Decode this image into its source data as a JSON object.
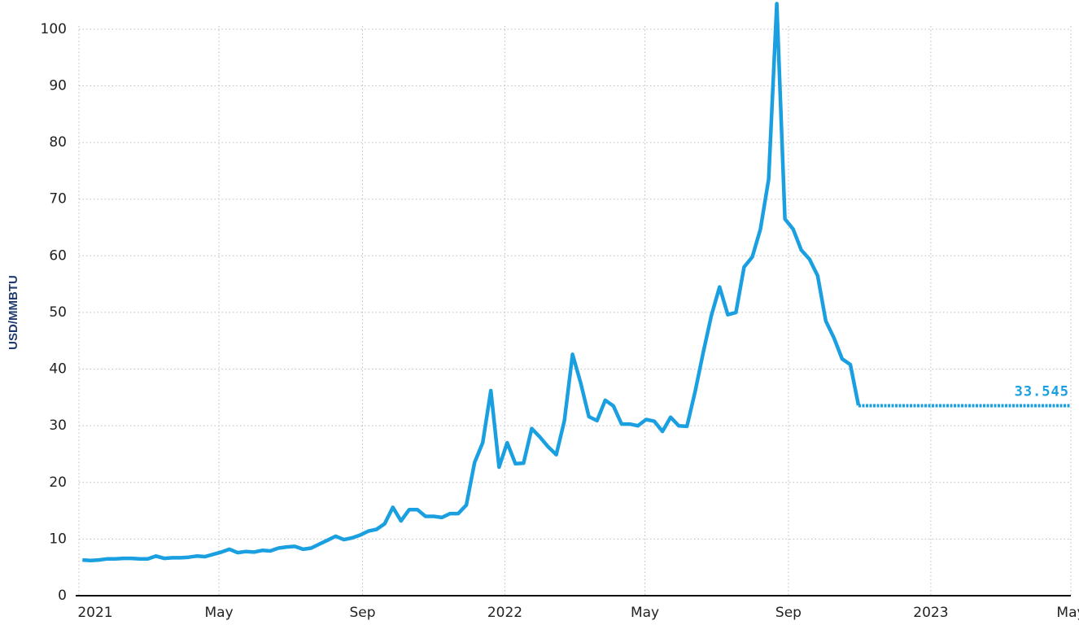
{
  "chart_data": {
    "type": "line",
    "y_label": "USD/MMBTU",
    "xlim": [
      "2021-01-01",
      "2023-05-01"
    ],
    "xticks": [
      {
        "value": "2021-01-01",
        "label": "2021"
      },
      {
        "value": "2021-05-01",
        "label": "May"
      },
      {
        "value": "2021-09-01",
        "label": "Sep"
      },
      {
        "value": "2022-01-01",
        "label": "2022"
      },
      {
        "value": "2022-05-01",
        "label": "May"
      },
      {
        "value": "2022-09-01",
        "label": "Sep"
      },
      {
        "value": "2023-01-01",
        "label": "2023"
      },
      {
        "value": "2023-05-01",
        "label": "May"
      }
    ],
    "ylim": [
      0,
      104
    ],
    "yticks": [
      0,
      10,
      20,
      30,
      40,
      50,
      60,
      70,
      80,
      90,
      100
    ],
    "grid": true,
    "series": [
      {
        "color": "#1a9fe0",
        "style": "solid",
        "x": [
          "2021-01-04",
          "2021-01-11",
          "2021-01-18",
          "2021-01-25",
          "2021-02-01",
          "2021-02-08",
          "2021-02-15",
          "2021-02-22",
          "2021-03-01",
          "2021-03-08",
          "2021-03-15",
          "2021-03-22",
          "2021-03-29",
          "2021-04-05",
          "2021-04-12",
          "2021-04-19",
          "2021-04-26",
          "2021-05-03",
          "2021-05-10",
          "2021-05-17",
          "2021-05-24",
          "2021-05-31",
          "2021-06-07",
          "2021-06-14",
          "2021-06-21",
          "2021-06-28",
          "2021-07-05",
          "2021-07-12",
          "2021-07-19",
          "2021-07-26",
          "2021-08-02",
          "2021-08-09",
          "2021-08-16",
          "2021-08-23",
          "2021-08-30",
          "2021-09-06",
          "2021-09-13",
          "2021-09-20",
          "2021-09-27",
          "2021-10-04",
          "2021-10-11",
          "2021-10-18",
          "2021-10-25",
          "2021-11-01",
          "2021-11-08",
          "2021-11-15",
          "2021-11-22",
          "2021-11-29",
          "2021-12-06",
          "2021-12-13",
          "2021-12-20",
          "2021-12-27",
          "2022-01-03",
          "2022-01-10",
          "2022-01-17",
          "2022-01-24",
          "2022-01-31",
          "2022-02-07",
          "2022-02-14",
          "2022-02-21",
          "2022-02-28",
          "2022-03-07",
          "2022-03-14",
          "2022-03-21",
          "2022-03-28",
          "2022-04-04",
          "2022-04-11",
          "2022-04-18",
          "2022-04-25",
          "2022-05-02",
          "2022-05-09",
          "2022-05-16",
          "2022-05-23",
          "2022-05-30",
          "2022-06-06",
          "2022-06-13",
          "2022-06-20",
          "2022-06-27",
          "2022-07-04",
          "2022-07-11",
          "2022-07-18",
          "2022-07-25",
          "2022-08-01",
          "2022-08-08",
          "2022-08-15",
          "2022-08-22",
          "2022-08-29",
          "2022-09-05",
          "2022-09-12",
          "2022-09-19",
          "2022-09-26",
          "2022-10-03",
          "2022-10-10",
          "2022-10-17",
          "2022-10-24",
          "2022-10-31"
        ],
        "values": [
          6.3,
          6.2,
          6.3,
          6.5,
          6.5,
          6.6,
          6.6,
          6.5,
          6.5,
          7.0,
          6.6,
          6.7,
          6.7,
          6.8,
          7.0,
          6.9,
          7.3,
          7.7,
          8.2,
          7.6,
          7.8,
          7.7,
          8.0,
          7.9,
          8.4,
          8.6,
          8.7,
          8.2,
          8.4,
          9.1,
          9.8,
          10.5,
          9.9,
          10.2,
          10.7,
          11.4,
          11.7,
          12.7,
          15.6,
          13.2,
          15.2,
          15.2,
          14.0,
          14.0,
          13.8,
          14.5,
          14.5,
          16.0,
          23.5,
          27.0,
          36.2,
          22.7,
          27.0,
          23.3,
          23.4,
          29.5,
          28.0,
          26.3,
          24.9,
          30.9,
          42.6,
          37.5,
          31.6,
          30.9,
          34.5,
          33.5,
          30.3,
          30.3,
          30.0,
          31.1,
          30.8,
          29.0,
          31.5,
          30.0,
          29.9,
          36.0,
          43.0,
          49.5,
          54.5,
          49.6,
          50.0,
          58.0,
          59.8,
          64.7,
          73.5,
          104.5,
          66.5,
          64.7,
          61.0,
          59.4,
          56.5,
          48.5,
          45.5,
          41.8,
          40.8,
          33.6
        ]
      },
      {
        "color": "#1a9fe0",
        "style": "dotted",
        "x": [
          "2022-10-31",
          "2023-05-01"
        ],
        "values": [
          33.545,
          33.545
        ]
      }
    ]
  }
}
